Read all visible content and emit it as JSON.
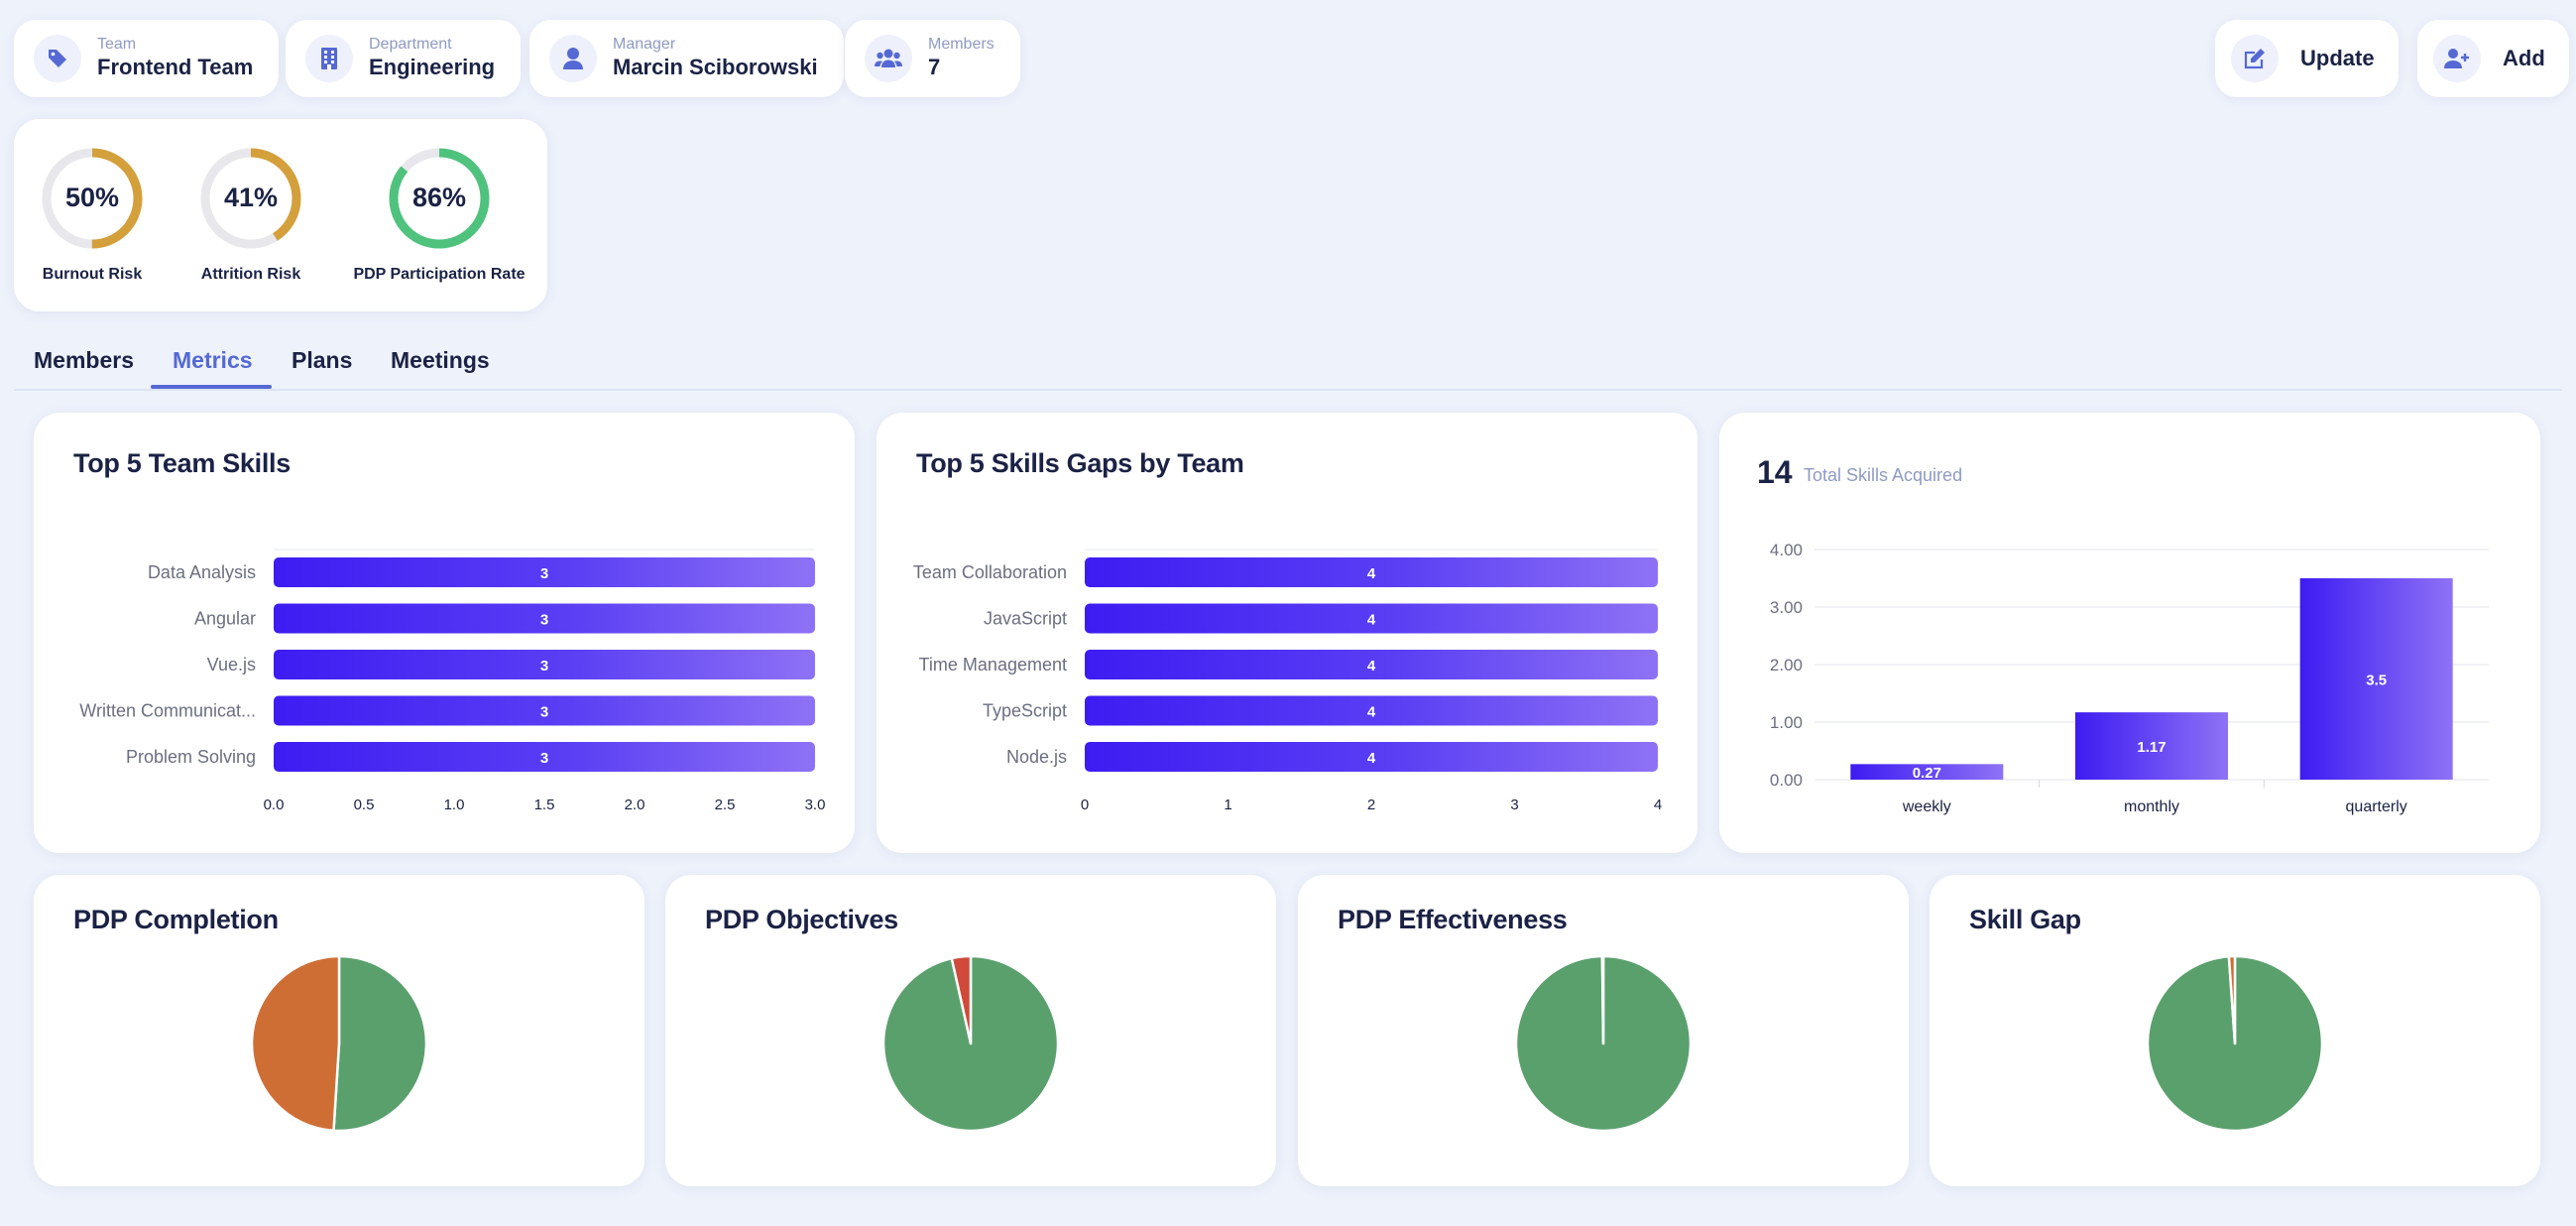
{
  "header": {
    "team": {
      "label": "Team",
      "value": "Frontend Team"
    },
    "department": {
      "label": "Department",
      "value": "Engineering"
    },
    "manager": {
      "label": "Manager",
      "value": "Marcin Sciborowski"
    },
    "members": {
      "label": "Members",
      "value": "7"
    },
    "update_label": "Update",
    "add_label": "Add"
  },
  "risk_metrics": [
    {
      "value": "50%",
      "fraction": 0.5,
      "label": "Burnout Risk",
      "color": "#d4a03c"
    },
    {
      "value": "41%",
      "fraction": 0.41,
      "label": "Attrition Risk",
      "color": "#d4a03c"
    },
    {
      "value": "86%",
      "fraction": 0.86,
      "label": "PDP Participation Rate",
      "color": "#4fc27d"
    }
  ],
  "tabs": [
    "Members",
    "Metrics",
    "Plans",
    "Meetings"
  ],
  "active_tab": "Metrics",
  "colors": {
    "accent": "#5569d4",
    "bar_start": "#3d1cf2",
    "bar_end": "#8e72f5",
    "pie_green": "#5aa06d",
    "pie_orange": "#cf6e34",
    "pie_red": "#cf4a3a"
  },
  "top_skills": {
    "title": "Top 5 Team Skills",
    "chart_data": {
      "type": "bar",
      "orientation": "horizontal",
      "categories": [
        "Data Analysis",
        "Angular",
        "Vue.js",
        "Written Communicat...",
        "Problem Solving"
      ],
      "values": [
        3,
        3,
        3,
        3,
        3
      ],
      "xlim": [
        0,
        3
      ],
      "xticks": [
        "0.0",
        "0.5",
        "1.0",
        "1.5",
        "2.0",
        "2.5",
        "3.0"
      ]
    }
  },
  "skill_gaps": {
    "title": "Top 5 Skills Gaps by Team",
    "chart_data": {
      "type": "bar",
      "orientation": "horizontal",
      "categories": [
        "Team Collaboration",
        "JavaScript",
        "Time Management",
        "TypeScript",
        "Node.js"
      ],
      "values": [
        4,
        4,
        4,
        4,
        4
      ],
      "xlim": [
        0,
        4
      ],
      "xticks": [
        "0",
        "1",
        "2",
        "3",
        "4"
      ]
    }
  },
  "skills_acquired": {
    "total": "14",
    "total_label": "Total Skills Acquired",
    "chart_data": {
      "type": "bar",
      "categories": [
        "weekly",
        "monthly",
        "quarterly"
      ],
      "values": [
        0.27,
        1.17,
        3.5
      ],
      "ylim": [
        0,
        4
      ],
      "yticks": [
        "0.00",
        "1.00",
        "2.00",
        "3.00",
        "4.00"
      ],
      "grid": true
    }
  },
  "pies": [
    {
      "title": "PDP Completion",
      "chart_data": {
        "type": "pie",
        "values": [
          51,
          49
        ],
        "colors": [
          "#5aa06d",
          "#cf6e34"
        ]
      }
    },
    {
      "title": "PDP Objectives",
      "chart_data": {
        "type": "pie",
        "values": [
          96.5,
          3.5
        ],
        "colors": [
          "#5aa06d",
          "#cf4a3a"
        ]
      }
    },
    {
      "title": "PDP Effectiveness",
      "chart_data": {
        "type": "pie",
        "values": [
          99.8,
          0.2
        ],
        "colors": [
          "#5aa06d",
          "#5aa06d"
        ]
      }
    },
    {
      "title": "Skill Gap",
      "chart_data": {
        "type": "pie",
        "values": [
          98.9,
          1.1
        ],
        "colors": [
          "#5aa06d",
          "#cf6e34"
        ]
      }
    }
  ]
}
